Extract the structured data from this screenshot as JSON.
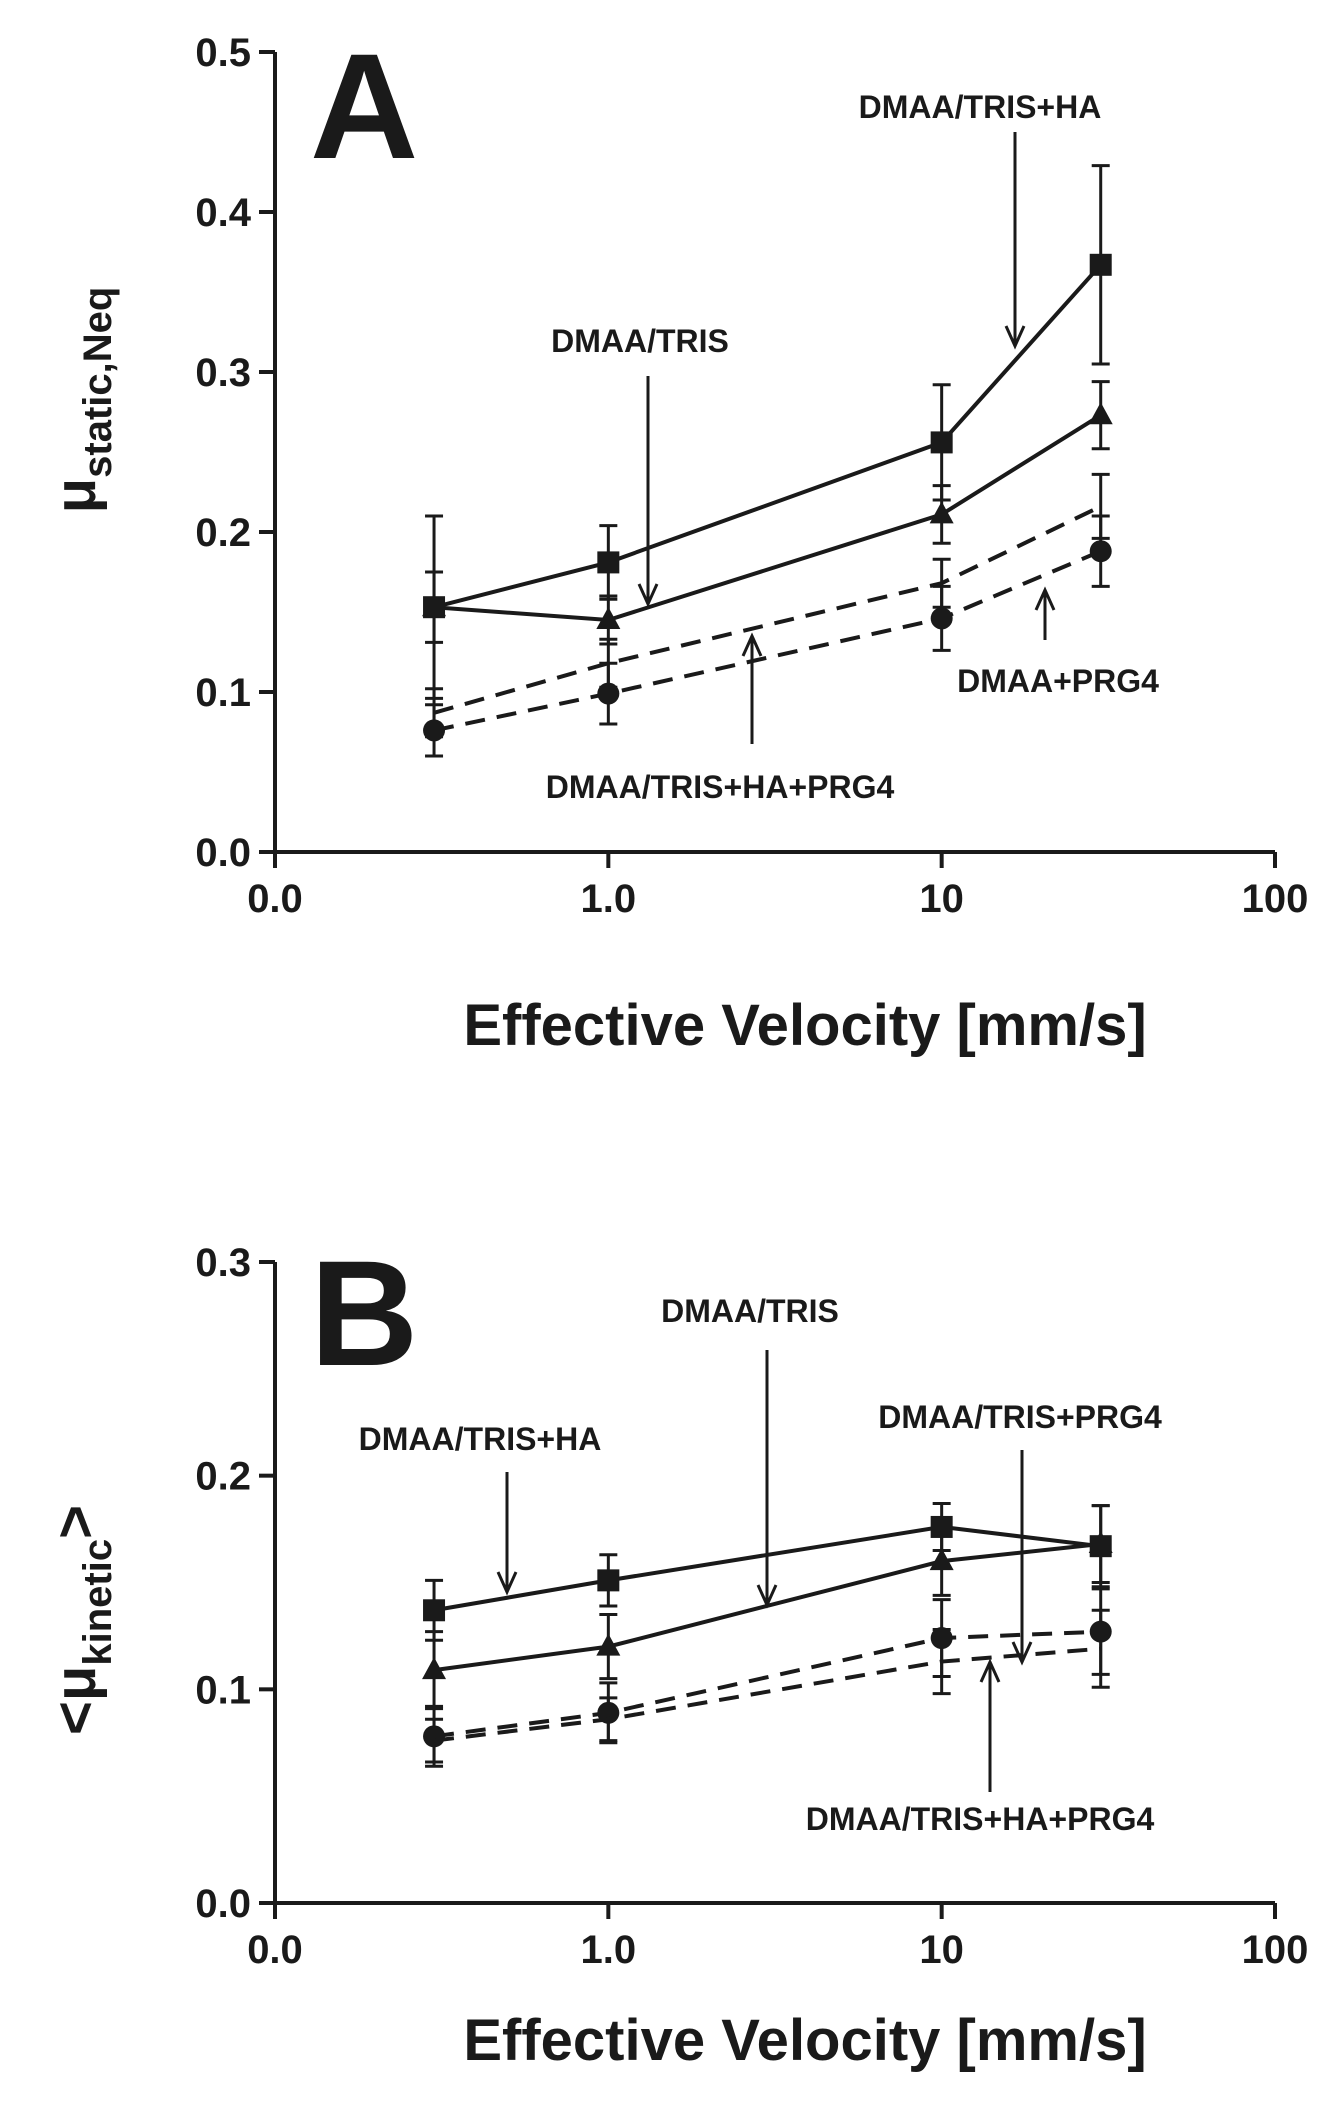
{
  "chart_data": [
    {
      "type": "line",
      "panel": "A",
      "xlabel": "Effective Velocity [mm/s]",
      "ylabel": {
        "main": "μ",
        "sub": "static,Neq"
      },
      "xscale": "log",
      "xticks": [
        "0.0",
        "1.0",
        "10",
        "100"
      ],
      "yticks": [
        "0.0",
        "0.1",
        "0.2",
        "0.3",
        "0.4",
        "0.5"
      ],
      "ylim": [
        0,
        0.5
      ],
      "x": [
        0.3,
        1.0,
        10,
        30
      ],
      "series": [
        {
          "name": "DMAA/TRIS+HA",
          "marker": "square",
          "line": "solid",
          "values": [
            0.153,
            0.181,
            0.256,
            0.367
          ],
          "err": [
            0.057,
            0.023,
            0.036,
            0.062
          ]
        },
        {
          "name": "DMAA/TRIS",
          "marker": "triangle",
          "line": "solid",
          "values": [
            0.153,
            0.145,
            0.211,
            0.273
          ],
          "err": [
            0.022,
            0.015,
            0.018,
            0.021
          ]
        },
        {
          "name": "DMAA/TRIS+HA+PRG4",
          "marker": "none",
          "line": "dashed",
          "values": [
            0.087,
            0.118,
            0.168,
            0.216
          ],
          "err": [
            0.015,
            0.015,
            0.015,
            0.02
          ]
        },
        {
          "name": "DMAA+PRG4",
          "marker": "circle",
          "line": "dashed",
          "values": [
            0.076,
            0.099,
            0.146,
            0.188
          ],
          "err": [
            0.016,
            0.019,
            0.02,
            0.022
          ]
        }
      ],
      "annotations": [
        {
          "text": "DMAA/TRIS+HA"
        },
        {
          "text": "DMAA/TRIS"
        },
        {
          "text": "DMAA+PRG4"
        },
        {
          "text": "DMAA/TRIS+HA+PRG4"
        }
      ],
      "panel_label": "A"
    },
    {
      "type": "line",
      "panel": "B",
      "xlabel": "Effective Velocity [mm/s]",
      "ylabel": {
        "main": "<μ",
        "sub": "kinetic",
        "suffix": ">"
      },
      "xscale": "log",
      "xticks": [
        "0.0",
        "1.0",
        "10",
        "100"
      ],
      "yticks": [
        "0.0",
        "0.1",
        "0.2",
        "0.3"
      ],
      "ylim": [
        0,
        0.3
      ],
      "x": [
        0.3,
        1.0,
        10,
        30
      ],
      "series": [
        {
          "name": "DMAA/TRIS+HA",
          "marker": "square",
          "line": "solid",
          "values": [
            0.137,
            0.151,
            0.176,
            0.167
          ],
          "err": [
            0.014,
            0.012,
            0.011,
            0.019
          ]
        },
        {
          "name": "DMAA/TRIS",
          "marker": "triangle",
          "line": "solid",
          "values": [
            0.109,
            0.12,
            0.16,
            0.168
          ],
          "err": [
            0.018,
            0.015,
            0.016,
            0.018
          ]
        },
        {
          "name": "DMAA/TRIS+PRG4",
          "marker": "circle",
          "line": "dashed",
          "values": [
            0.078,
            0.089,
            0.124,
            0.127
          ],
          "err": [
            0.014,
            0.014,
            0.018,
            0.02
          ]
        },
        {
          "name": "DMAA/TRIS+HA+PRG4",
          "marker": "none",
          "line": "dashed",
          "values": [
            0.076,
            0.086,
            0.113,
            0.119
          ],
          "err": [
            0.01,
            0.01,
            0.015,
            0.018
          ]
        }
      ],
      "annotations": [
        {
          "text": "DMAA/TRIS"
        },
        {
          "text": "DMAA/TRIS+HA"
        },
        {
          "text": "DMAA/TRIS+PRG4"
        },
        {
          "text": "DMAA/TRIS+HA+PRG4"
        }
      ],
      "panel_label": "B"
    }
  ]
}
